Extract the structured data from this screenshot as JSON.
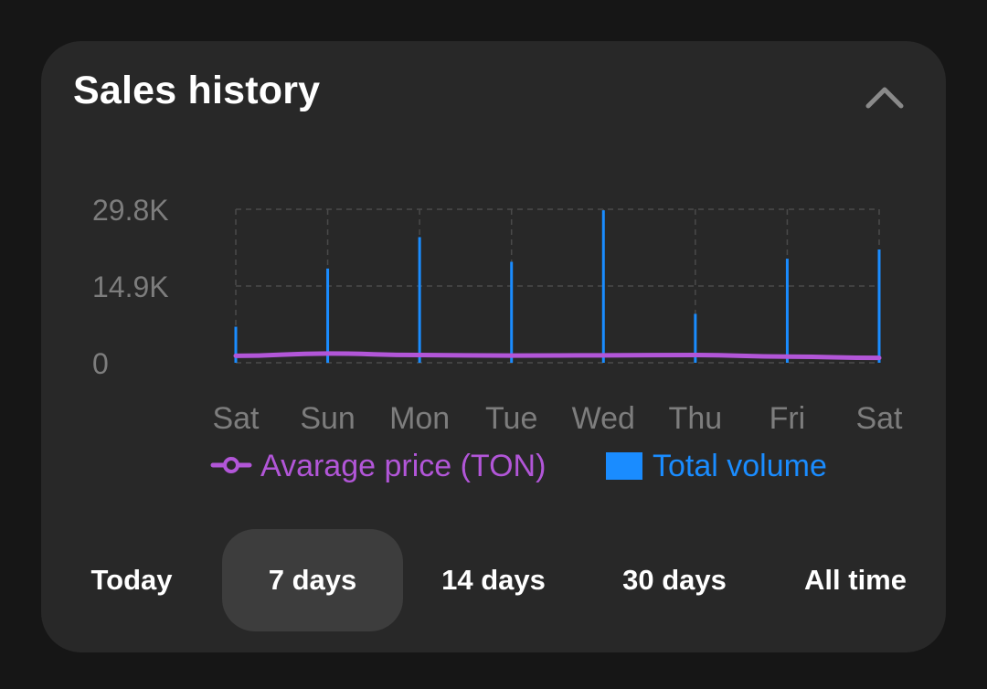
{
  "card": {
    "title": "Sales history"
  },
  "colors": {
    "price": "#b256d8",
    "volume": "#1a8cff"
  },
  "chart_data": {
    "type": "bar",
    "categories": [
      "Sat",
      "Sun",
      "Mon",
      "Tue",
      "Wed",
      "Thu",
      "Fri",
      "Sat"
    ],
    "y_ticks": [
      "29.8K",
      "14.9K",
      "0"
    ],
    "ylim": [
      0,
      29800
    ],
    "grid": true,
    "legend_position": "bottom",
    "series": [
      {
        "name": "Avarage price (TON)",
        "type": "line",
        "values": [
          1350,
          1800,
          1500,
          1400,
          1450,
          1500,
          1200,
          950
        ]
      },
      {
        "name": "Total volume",
        "type": "bar",
        "values": [
          7000,
          18300,
          24400,
          19600,
          29600,
          9500,
          20200,
          22000
        ]
      }
    ]
  },
  "tabs": [
    {
      "label": "Today",
      "active": false
    },
    {
      "label": "7 days",
      "active": true
    },
    {
      "label": "14 days",
      "active": false
    },
    {
      "label": "30 days",
      "active": false
    },
    {
      "label": "All time",
      "active": false
    }
  ]
}
